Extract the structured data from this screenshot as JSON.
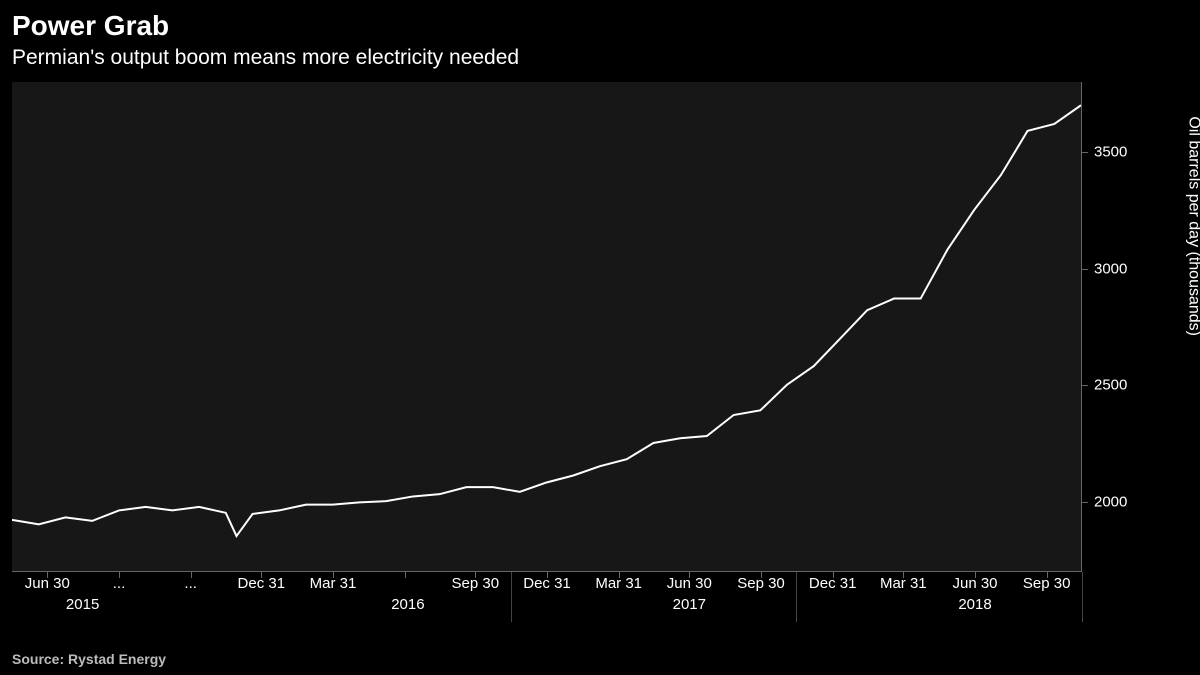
{
  "title": "Power Grab",
  "subtitle": "Permian's output boom means more electricity needed",
  "source": "Source: Rystad Energy",
  "chart": {
    "type": "line",
    "background_color": "#171717",
    "page_background": "#000000",
    "line_color": "#ffffff",
    "line_width": 2,
    "text_color": "#ffffff",
    "border_color": "#666666",
    "yaxis": {
      "title": "Oil barrels per day (thousands)",
      "min": 1700,
      "max": 3800,
      "ticks": [
        2000,
        2500,
        3000,
        3500
      ],
      "fontsize": 15
    },
    "xaxis": {
      "tick_labels": [
        "Jun 30",
        "...",
        "...",
        "Dec 31",
        "Mar 31",
        "",
        "Sep 30",
        "Dec 31",
        "Mar 31",
        "Jun 30",
        "Sep 30",
        "Dec 31",
        "Mar 31",
        "Jun 30",
        "Sep 30"
      ],
      "tick_positions": [
        0.033,
        0.1,
        0.167,
        0.233,
        0.3,
        0.367,
        0.433,
        0.5,
        0.567,
        0.633,
        0.7,
        0.767,
        0.833,
        0.9,
        0.967
      ],
      "year_labels": [
        "2015",
        "2016",
        "2017",
        "2018"
      ],
      "year_positions": [
        0.066,
        0.37,
        0.633,
        0.9
      ],
      "year_boundaries": [
        0,
        0.2,
        0.466,
        0.733,
        1.0
      ],
      "fontsize": 15
    },
    "series": {
      "x": [
        0,
        0.025,
        0.05,
        0.075,
        0.1,
        0.125,
        0.15,
        0.175,
        0.2,
        0.21,
        0.225,
        0.25,
        0.275,
        0.3,
        0.325,
        0.35,
        0.375,
        0.4,
        0.425,
        0.45,
        0.475,
        0.5,
        0.525,
        0.55,
        0.575,
        0.6,
        0.625,
        0.65,
        0.675,
        0.7,
        0.725,
        0.75,
        0.775,
        0.8,
        0.825,
        0.85,
        0.875,
        0.9,
        0.925,
        0.95,
        0.975,
        1.0
      ],
      "y": [
        1920,
        1900,
        1930,
        1915,
        1960,
        1975,
        1960,
        1975,
        1950,
        1850,
        1945,
        1960,
        1985,
        1985,
        1995,
        2000,
        2020,
        2030,
        2060,
        2060,
        2040,
        2080,
        2110,
        2150,
        2180,
        2250,
        2270,
        2280,
        2370,
        2390,
        2500,
        2580,
        2700,
        2820,
        2870,
        2870,
        3080,
        3250,
        3400,
        3590,
        3620,
        3700
      ]
    }
  }
}
